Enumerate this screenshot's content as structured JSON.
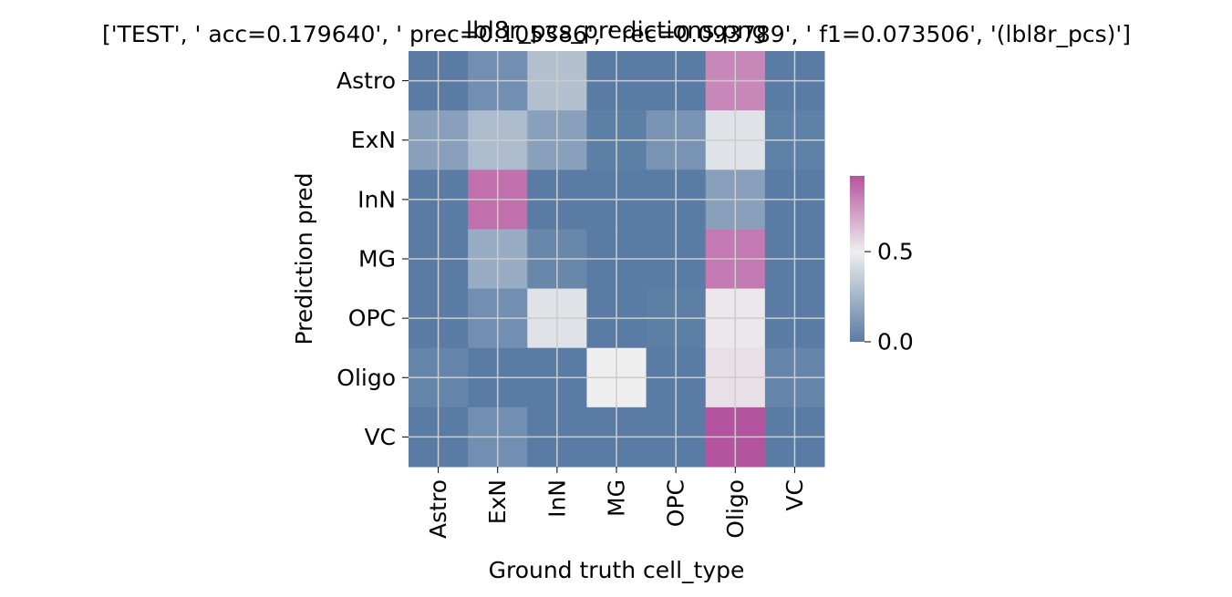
{
  "chart_data": {
    "type": "heatmap",
    "title": "lbl8r_pcs_predictions.png",
    "subtitle": "['TEST', ' acc=0.179640', '  prec=0.105386', ' rec=0.093789', ' f1=0.073506', '(lbl8r_pcs)']",
    "xlabel": "Ground truth cell_type",
    "ylabel": "Prediction pred",
    "x_categories": [
      "Astro",
      "ExN",
      "InN",
      "MG",
      "OPC",
      "Oligo",
      "VC"
    ],
    "y_categories": [
      "Astro",
      "ExN",
      "InN",
      "MG",
      "OPC",
      "Oligo",
      "VC"
    ],
    "values": [
      [
        0.0,
        0.08,
        0.3,
        0.0,
        0.0,
        0.78,
        0.0
      ],
      [
        0.16,
        0.28,
        0.16,
        0.01,
        0.1,
        0.45,
        0.02
      ],
      [
        0.0,
        0.84,
        0.0,
        0.0,
        0.0,
        0.16,
        0.0
      ],
      [
        0.0,
        0.21,
        0.05,
        0.0,
        0.0,
        0.82,
        0.0
      ],
      [
        0.0,
        0.08,
        0.45,
        0.0,
        0.01,
        0.52,
        0.0
      ],
      [
        0.04,
        0.0,
        0.0,
        0.5,
        0.0,
        0.54,
        0.04
      ],
      [
        0.0,
        0.08,
        0.0,
        0.0,
        0.0,
        0.92,
        0.0
      ]
    ],
    "colorbar": {
      "ticks": [
        0.0,
        0.5
      ],
      "tick_labels": [
        "0.0",
        "0.5"
      ],
      "range": [
        0.0,
        0.92
      ],
      "colors": {
        "low": "#5a7ca4",
        "mid": "#eeeeee",
        "high": "#b5549e"
      }
    },
    "grid": true,
    "grid_color": "#cccccc"
  }
}
